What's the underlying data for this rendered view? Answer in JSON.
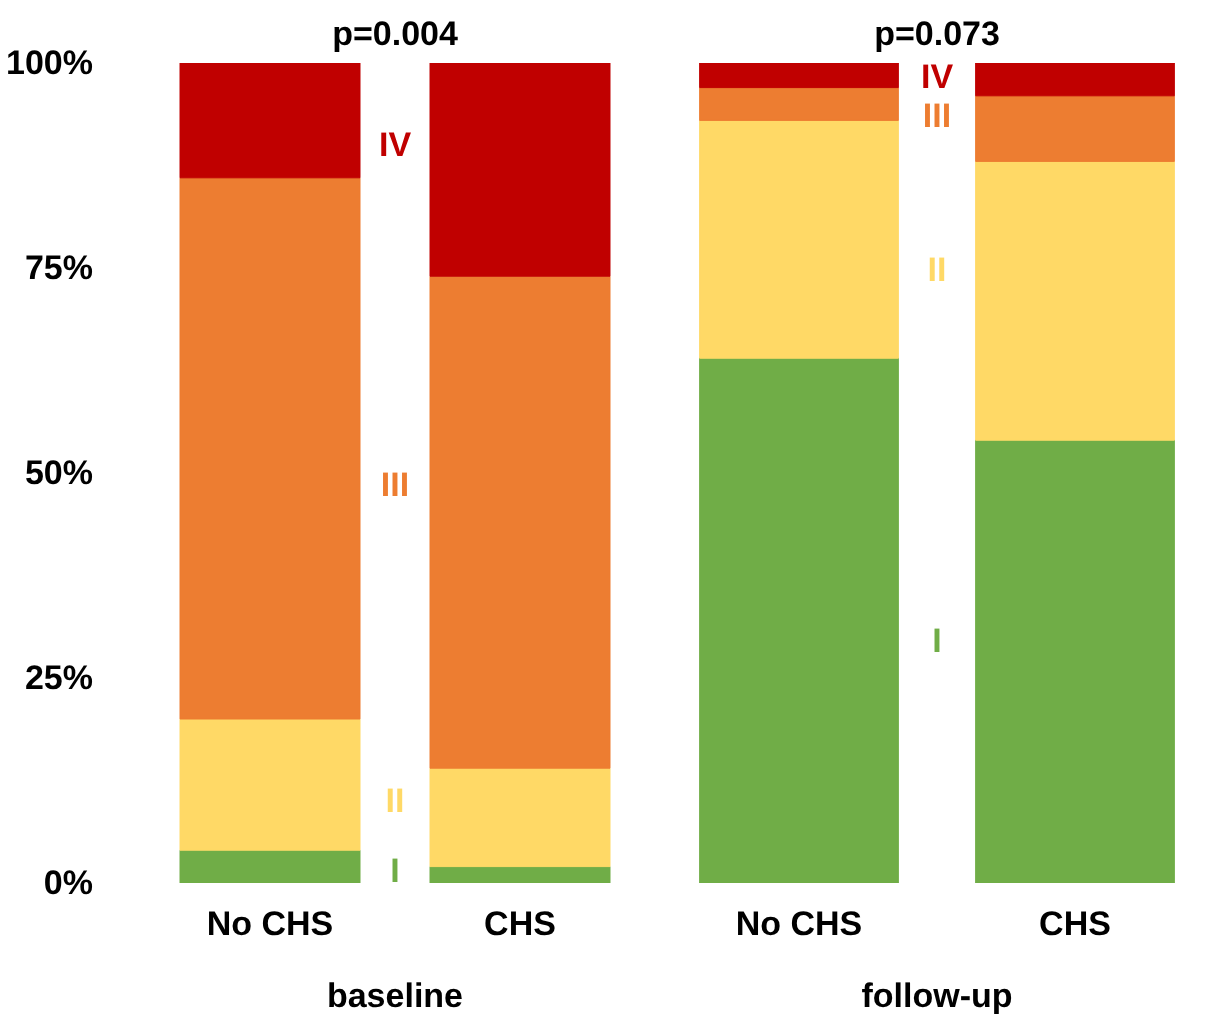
{
  "chart_data": [
    {
      "type": "bar",
      "title": "p=0.004",
      "xlabel": "baseline",
      "stacked": true,
      "categories": [
        "No CHS",
        "CHS"
      ],
      "ylim": [
        0,
        100
      ],
      "yticks": [
        {
          "value": 0,
          "label": "0%"
        },
        {
          "value": 25,
          "label": "25%"
        },
        {
          "value": 50,
          "label": "50%"
        },
        {
          "value": 75,
          "label": "75%"
        },
        {
          "value": 100,
          "label": "100%"
        }
      ],
      "series": [
        {
          "name": "I",
          "color": "#70ad47",
          "values": [
            4,
            2
          ]
        },
        {
          "name": "II",
          "color": "#ffd966",
          "values": [
            16,
            12
          ]
        },
        {
          "name": "III",
          "color": "#ed7d31",
          "values": [
            66,
            60
          ]
        },
        {
          "name": "IV",
          "color": "#c00000",
          "values": [
            14,
            26
          ]
        }
      ]
    },
    {
      "type": "bar",
      "title": "p=0.073",
      "xlabel": "follow-up",
      "stacked": true,
      "categories": [
        "No CHS",
        "CHS"
      ],
      "ylim": [
        0,
        100
      ],
      "tick_labels": "x",
      "yticks": [
        {
          "value": 0,
          "label": null
        },
        {
          "value": 25,
          "label": null
        },
        {
          "value": 50,
          "label": null
        },
        {
          "value": 75,
          "label": null
        },
        {
          "value": 100,
          "label": null
        }
      ],
      "series": [
        {
          "name": "I",
          "color": "#70ad47",
          "values": [
            64,
            54
          ]
        },
        {
          "name": "II",
          "color": "#ffd966",
          "values": [
            29,
            34
          ]
        },
        {
          "name": "III",
          "color": "#ed7d31",
          "values": [
            4,
            8
          ]
        },
        {
          "name": "IV",
          "color": "#c00000",
          "values": [
            3,
            4
          ]
        }
      ]
    }
  ]
}
